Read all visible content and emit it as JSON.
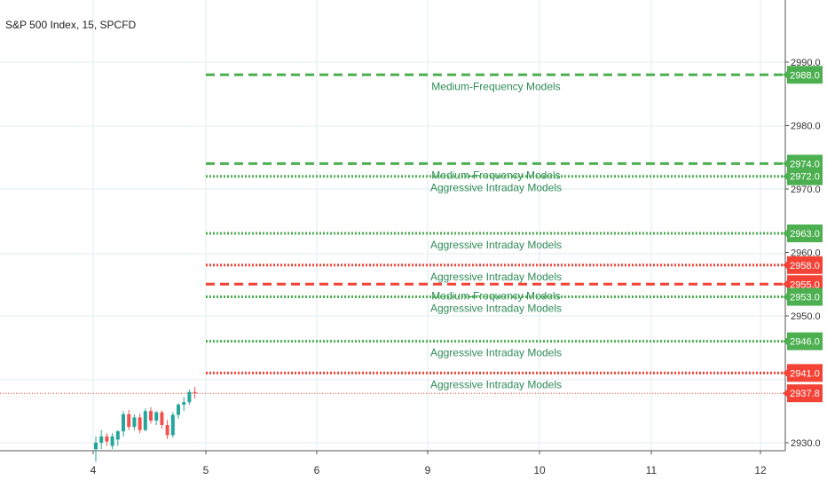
{
  "title": "S&P 500 Index, 15, SPCFD",
  "chart_data": {
    "type": "line",
    "title": "S&P 500 Index, 15, SPCFD",
    "x_ticks": [
      "4",
      "5",
      "6",
      "9",
      "10",
      "11",
      "12"
    ],
    "y_ticks": [
      "2930.0",
      "2950.0",
      "2960.0",
      "2970.0",
      "2980.0",
      "2990.0"
    ],
    "ylim": [
      2930,
      2990
    ],
    "current_price": 2937.8,
    "levels": [
      {
        "value": 2988.0,
        "label": "Medium-Frequency Models",
        "style": "dashed",
        "color": "#4caf50"
      },
      {
        "value": 2974.0,
        "label": "Medium-Frequency Models",
        "style": "dashed",
        "color": "#4caf50"
      },
      {
        "value": 2972.0,
        "label": "Aggressive Intraday Models",
        "style": "dotted",
        "color": "#4caf50"
      },
      {
        "value": 2963.0,
        "label": "Aggressive Intraday Models",
        "style": "dotted",
        "color": "#4caf50"
      },
      {
        "value": 2958.0,
        "label": "Aggressive Intraday Models",
        "style": "dotted",
        "color": "#f44336"
      },
      {
        "value": 2955.0,
        "label": "Medium-Frequency Models",
        "style": "dashed",
        "color": "#f44336"
      },
      {
        "value": 2953.0,
        "label": "Aggressive Intraday Models",
        "style": "dotted",
        "color": "#4caf50"
      },
      {
        "value": 2946.0,
        "label": "Aggressive Intraday Models",
        "style": "dotted",
        "color": "#4caf50"
      },
      {
        "value": 2941.0,
        "label": "Aggressive Intraday Models",
        "style": "dotted",
        "color": "#f44336"
      }
    ],
    "price_badges": [
      {
        "text": "2988.0",
        "value": 2988.0,
        "color": "#4caf50"
      },
      {
        "text": "2974.0",
        "value": 2974.0,
        "color": "#4caf50"
      },
      {
        "text": "2972.0",
        "value": 2972.0,
        "color": "#4caf50"
      },
      {
        "text": "2963.0",
        "value": 2963.0,
        "color": "#4caf50"
      },
      {
        "text": "2958.0",
        "value": 2958.0,
        "color": "#f44336"
      },
      {
        "text": "2955.0",
        "value": 2955.0,
        "color": "#f44336"
      },
      {
        "text": "2953.0",
        "value": 2953.0,
        "color": "#4caf50"
      },
      {
        "text": "2946.0",
        "value": 2946.0,
        "color": "#4caf50"
      },
      {
        "text": "2941.0",
        "value": 2941.0,
        "color": "#f44336"
      },
      {
        "text": "2937.8",
        "value": 2937.8,
        "color": "#f44336"
      }
    ],
    "candles": [
      {
        "o": 2929.0,
        "h": 2931.0,
        "l": 2927.0,
        "c": 2930.0
      },
      {
        "o": 2930.0,
        "h": 2932.0,
        "l": 2929.0,
        "c": 2931.0
      },
      {
        "o": 2931.0,
        "h": 2931.5,
        "l": 2929.5,
        "c": 2930.2
      },
      {
        "o": 2929.5,
        "h": 2931.5,
        "l": 2929.0,
        "c": 2931.0
      },
      {
        "o": 2930.5,
        "h": 2932.0,
        "l": 2929.5,
        "c": 2931.8
      },
      {
        "o": 2931.8,
        "h": 2935.0,
        "l": 2931.0,
        "c": 2934.5
      },
      {
        "o": 2934.5,
        "h": 2935.2,
        "l": 2932.0,
        "c": 2932.5
      },
      {
        "o": 2932.5,
        "h": 2934.5,
        "l": 2932.0,
        "c": 2934.0
      },
      {
        "o": 2934.0,
        "h": 2934.6,
        "l": 2931.5,
        "c": 2932.0
      },
      {
        "o": 2932.0,
        "h": 2935.4,
        "l": 2931.8,
        "c": 2935.0
      },
      {
        "o": 2935.0,
        "h": 2935.6,
        "l": 2933.0,
        "c": 2933.5
      },
      {
        "o": 2933.5,
        "h": 2935.0,
        "l": 2932.8,
        "c": 2934.8
      },
      {
        "o": 2934.8,
        "h": 2935.1,
        "l": 2932.2,
        "c": 2932.8
      },
      {
        "o": 2932.8,
        "h": 2933.6,
        "l": 2930.6,
        "c": 2931.2
      },
      {
        "o": 2931.2,
        "h": 2934.8,
        "l": 2930.8,
        "c": 2934.4
      },
      {
        "o": 2934.4,
        "h": 2936.2,
        "l": 2933.8,
        "c": 2936.0
      },
      {
        "o": 2936.0,
        "h": 2937.2,
        "l": 2935.0,
        "c": 2936.4
      },
      {
        "o": 2936.4,
        "h": 2938.4,
        "l": 2936.0,
        "c": 2938.0
      },
      {
        "o": 2938.0,
        "h": 2938.8,
        "l": 2937.0,
        "c": 2937.8
      }
    ],
    "colors": {
      "up": "#26a69a",
      "down": "#ef5350",
      "current": "#f44336",
      "grid": "#e1ecf2"
    }
  }
}
